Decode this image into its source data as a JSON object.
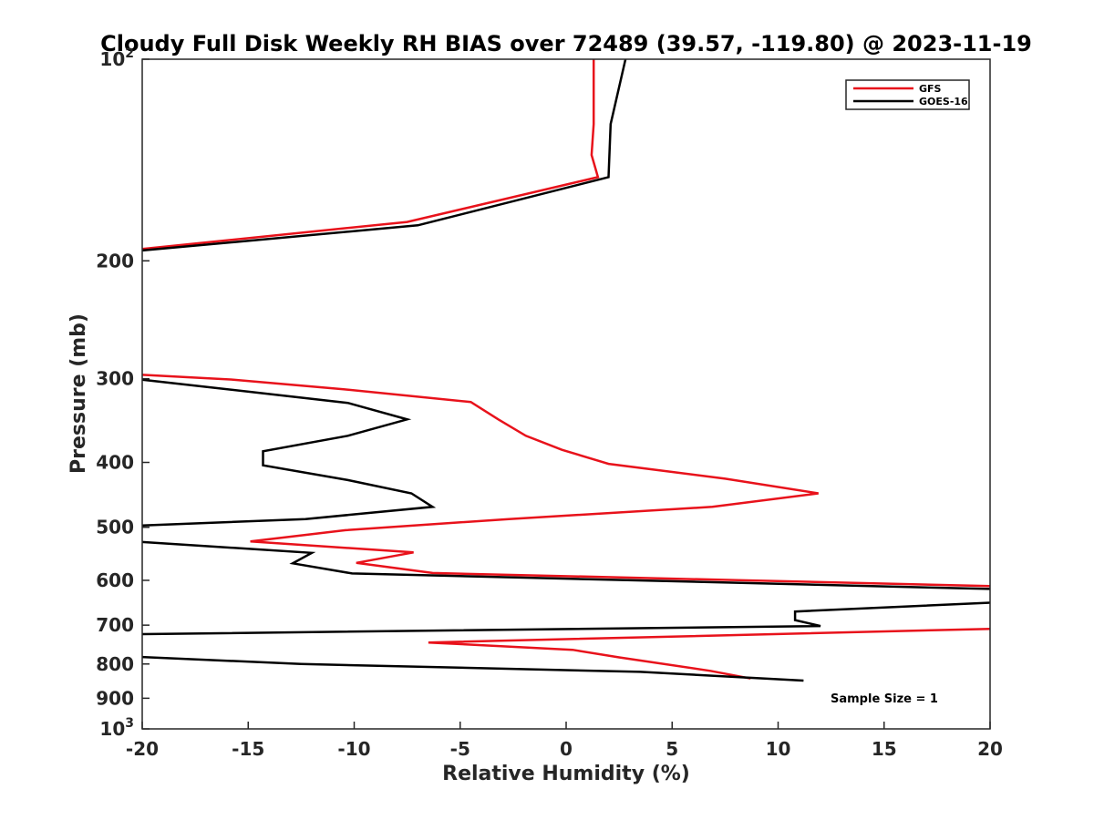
{
  "chart_data": {
    "type": "line",
    "title": "Cloudy Full Disk Weekly RH BIAS over 72489 (39.57, -119.80) @ 2023-11-19",
    "xlabel": "Relative Humidity (%)",
    "ylabel": "Pressure (mb)",
    "xlim": [
      -20,
      20
    ],
    "ylim": [
      100,
      1000
    ],
    "y_scale": "log",
    "y_reversed": true,
    "x_ticks": [
      -20,
      -15,
      -10,
      -5,
      0,
      5,
      10,
      15,
      20
    ],
    "x_tick_labels": [
      "-20",
      "-15",
      "-10",
      "-5",
      "0",
      "5",
      "10",
      "15",
      "20"
    ],
    "y_ticks": [
      100,
      200,
      300,
      400,
      500,
      600,
      700,
      800,
      900,
      1000
    ],
    "y_tick_labels": [
      {
        "base": "10",
        "exp": "2"
      },
      {
        "base": "200",
        "exp": ""
      },
      {
        "base": "300",
        "exp": ""
      },
      {
        "base": "400",
        "exp": ""
      },
      {
        "base": "500",
        "exp": ""
      },
      {
        "base": "600",
        "exp": ""
      },
      {
        "base": "700",
        "exp": ""
      },
      {
        "base": "800",
        "exp": ""
      },
      {
        "base": "900",
        "exp": ""
      },
      {
        "base": "10",
        "exp": "3"
      }
    ],
    "grid": false,
    "legend_position": "top-right",
    "series": [
      {
        "name": "GFS",
        "color": "#e8121b",
        "segments": [
          [
            [
              1.3,
              100
            ],
            [
              1.3,
              125
            ],
            [
              1.2,
              139
            ],
            [
              1.5,
              150
            ],
            [
              -7.5,
              175
            ],
            [
              -20,
              192
            ]
          ],
          [
            [
              -20,
              296
            ],
            [
              -15.7,
              301
            ],
            [
              -10.5,
              311
            ],
            [
              -4.5,
              325
            ],
            [
              -3.2,
              345
            ],
            [
              -1.9,
              365
            ],
            [
              -0.2,
              383
            ],
            [
              2.0,
              402
            ],
            [
              7.5,
              423
            ],
            [
              11.9,
              445
            ],
            [
              6.9,
              466
            ],
            [
              -2.7,
              486
            ],
            [
              -10.4,
              505
            ],
            [
              -14.9,
              525
            ],
            [
              -7.2,
              545
            ],
            [
              -9.9,
              565
            ],
            [
              -6.3,
              585
            ],
            [
              20,
              612
            ]
          ],
          [
            [
              20,
              709
            ],
            [
              -6.5,
              743
            ],
            [
              0.3,
              762
            ],
            [
              2.5,
              782
            ],
            [
              6.8,
              819
            ],
            [
              8.7,
              841
            ]
          ]
        ]
      },
      {
        "name": "GOES-16",
        "color": "#000000",
        "segments": [
          [
            [
              2.8,
              100
            ],
            [
              2.1,
              125
            ],
            [
              2.0,
              150
            ],
            [
              -7.0,
              177
            ],
            [
              -20,
              193
            ]
          ],
          [
            [
              -20,
              301
            ],
            [
              -10.3,
              326
            ],
            [
              -7.5,
              345
            ],
            [
              -10.3,
              365
            ],
            [
              -14.3,
              385
            ],
            [
              -14.3,
              404
            ],
            [
              -10.3,
              425
            ],
            [
              -7.3,
              445
            ],
            [
              -6.3,
              466
            ],
            [
              -12.3,
              486
            ],
            [
              -20,
              497
            ]
          ],
          [
            [
              -20,
              526
            ],
            [
              -12.0,
              546
            ],
            [
              -12.9,
              566
            ],
            [
              -10.1,
              586
            ],
            [
              20,
              618
            ]
          ],
          [
            [
              20,
              648
            ],
            [
              10.8,
              668
            ],
            [
              10.8,
              688
            ],
            [
              12.0,
              702
            ],
            [
              -20,
              722
            ]
          ],
          [
            [
              -20,
              781
            ],
            [
              -12.5,
              800
            ],
            [
              3.5,
              822
            ],
            [
              11.2,
              847
            ]
          ]
        ]
      }
    ],
    "annotations": [
      "Sample Size = 1"
    ]
  }
}
